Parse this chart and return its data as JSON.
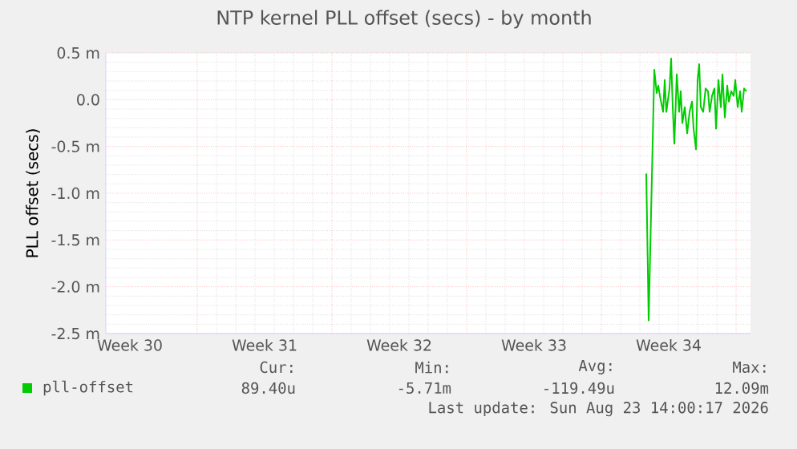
{
  "chart_data": {
    "type": "line",
    "title": "NTP kernel PLL offset (secs) - by month",
    "ylabel": "PLL offset (secs)",
    "xlim": [
      "2026-07-21T06:00",
      "2026-08-23T18:00"
    ],
    "ylim": [
      -2.5,
      0.5
    ],
    "xticks": [
      {
        "value": "2026-07-22T12:00",
        "label": "Week 30"
      },
      {
        "value": "2026-07-29T12:00",
        "label": "Week 31"
      },
      {
        "value": "2026-08-05T12:00",
        "label": "Week 32"
      },
      {
        "value": "2026-08-12T12:00",
        "label": "Week 33"
      },
      {
        "value": "2026-08-19T12:00",
        "label": "Week 34"
      },
      {
        "value": "2026-07-26",
        "label": null
      },
      {
        "value": "2026-08-02",
        "label": null
      },
      {
        "value": "2026-08-09",
        "label": null
      },
      {
        "value": "2026-08-16",
        "label": null
      },
      {
        "value": "2026-08-23",
        "label": null
      }
    ],
    "yticks": [
      {
        "value": -2.5,
        "label": "-2.5 m"
      },
      {
        "value": -2.0,
        "label": "-2.0 m"
      },
      {
        "value": -1.5,
        "label": "-1.5 m"
      },
      {
        "value": -1.0,
        "label": "-1.0 m"
      },
      {
        "value": -0.5,
        "label": "-0.5 m"
      },
      {
        "value": 0,
        "label": "0.0"
      },
      {
        "value": 0.5,
        "label": "0.5 m"
      }
    ],
    "grid": true,
    "legend": "bottom left",
    "series": [
      {
        "name": "pll-offset",
        "color": "#00cc00",
        "x": [
          "2026-08-18T08:00",
          "2026-08-18T11:00",
          "2026-08-18T18:00",
          "2026-08-18T21:00",
          "2026-08-18T23:00",
          "2026-08-19T01:00",
          "2026-08-19T05:00",
          "2026-08-19T07:00",
          "2026-08-19T09:00",
          "2026-08-19T13:00",
          "2026-08-19T15:00",
          "2026-08-19T17:00",
          "2026-08-19T19:00",
          "2026-08-19T22:00",
          "2026-08-20T01:00",
          "2026-08-20T03:00",
          "2026-08-20T05:00",
          "2026-08-20T08:00",
          "2026-08-20T11:00",
          "2026-08-20T14:00",
          "2026-08-20T17:00",
          "2026-08-20T19:00",
          "2026-08-20T22:00",
          "2026-08-21T00:00",
          "2026-08-21T02:00",
          "2026-08-21T04:00",
          "2026-08-21T07:00",
          "2026-08-21T10:00",
          "2026-08-21T13:00",
          "2026-08-21T15:00",
          "2026-08-21T18:00",
          "2026-08-21T21:00",
          "2026-08-21T23:00",
          "2026-08-22T02:00",
          "2026-08-22T05:00",
          "2026-08-22T07:00",
          "2026-08-22T10:00",
          "2026-08-22T13:00",
          "2026-08-22T15:00",
          "2026-08-22T18:00",
          "2026-08-22T21:00",
          "2026-08-22T23:00",
          "2026-08-23T02:00",
          "2026-08-23T05:00",
          "2026-08-23T07:00",
          "2026-08-23T10:00",
          "2026-08-23T13:00"
        ],
        "values": [
          -0.79,
          -2.36,
          0.32,
          0.07,
          0.15,
          0.04,
          -0.13,
          0.21,
          -0.13,
          0.12,
          0.44,
          -0.08,
          -0.47,
          0.27,
          -0.13,
          0.09,
          -0.25,
          -0.08,
          -0.36,
          -0.13,
          -0.02,
          -0.31,
          -0.53,
          0.21,
          0.38,
          -0.08,
          -0.13,
          0.12,
          0.09,
          -0.13,
          0.04,
          0.12,
          -0.31,
          0.21,
          -0.08,
          0.27,
          -0.19,
          0.15,
          -0.02,
          0.09,
          0.04,
          0.21,
          -0.08,
          0.09,
          -0.13,
          0.12,
          0.09
        ]
      }
    ],
    "annotations": [
      "Cur:",
      "Min:",
      "Avg:",
      "Max:",
      "89.40u",
      "-5.71m",
      "-119.49u",
      "12.09m",
      "Last update: Sun Aug 23 14:00:17 2026"
    ]
  }
}
